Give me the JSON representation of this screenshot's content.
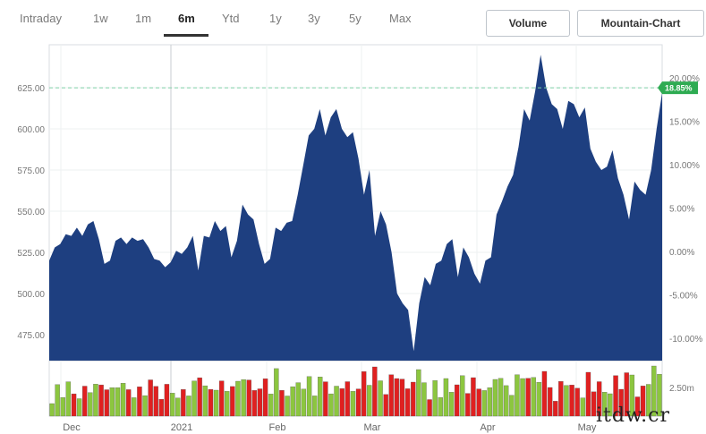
{
  "tabs": [
    {
      "label": "Intraday",
      "active": false
    },
    {
      "label": "1w",
      "active": false
    },
    {
      "label": "1m",
      "active": false
    },
    {
      "label": "6m",
      "active": true
    },
    {
      "label": "Ytd",
      "active": false
    },
    {
      "label": "1y",
      "active": false
    },
    {
      "label": "3y",
      "active": false
    },
    {
      "label": "5y",
      "active": false
    },
    {
      "label": "Max",
      "active": false
    }
  ],
  "buttons": {
    "volume": "Volume",
    "mountain": "Mountain-Chart"
  },
  "watermark": "itdw.cr",
  "chart_data": {
    "type": "area",
    "x_ticks": [
      "Dec",
      "2021",
      "Feb",
      "Mar",
      "Apr",
      "May"
    ],
    "y_ticks_left": [
      "625.00",
      "600.00",
      "575.00",
      "550.00",
      "525.00",
      "500.00",
      "475.00"
    ],
    "y_ticks_left_values": [
      625,
      600,
      575,
      550,
      525,
      500,
      475
    ],
    "y_ticks_right": [
      "20.00%",
      "15.00%",
      "10.00%",
      "5.00%",
      "0.00%",
      "-5.00%",
      "-10.00%"
    ],
    "y_ticks_right_values": [
      20,
      15,
      10,
      5,
      0,
      -5,
      -10
    ],
    "volume_tick": "2.50m",
    "ylim": [
      460,
      650
    ],
    "reference_percent": 18.85,
    "reference_label": "18.85%",
    "area_color": "#1e3f80",
    "up_color": "#8cc63f",
    "down_color": "#e02020",
    "reference_color": "#7fd1a8",
    "price_series": [
      520,
      528,
      530,
      536,
      535,
      540,
      535,
      542,
      544,
      533,
      518,
      520,
      532,
      534,
      530,
      534,
      532,
      533,
      528,
      521,
      520,
      516,
      519,
      526,
      524,
      528,
      535,
      514,
      535,
      534,
      544,
      538,
      541,
      522,
      532,
      554,
      548,
      545,
      530,
      518,
      521,
      540,
      538,
      543,
      544,
      560,
      578,
      596,
      600,
      612,
      596,
      607,
      612,
      600,
      595,
      598,
      582,
      560,
      575,
      535,
      550,
      542,
      525,
      500,
      494,
      490,
      465,
      494,
      510,
      505,
      518,
      520,
      530,
      533,
      510,
      528,
      522,
      512,
      506,
      520,
      522,
      548,
      556,
      565,
      572,
      589,
      612,
      605,
      623,
      645,
      625,
      615,
      612,
      600,
      617,
      615,
      607,
      613,
      588,
      580,
      575,
      577,
      587,
      570,
      560,
      545,
      568,
      563,
      560,
      575,
      600,
      622
    ]
  }
}
